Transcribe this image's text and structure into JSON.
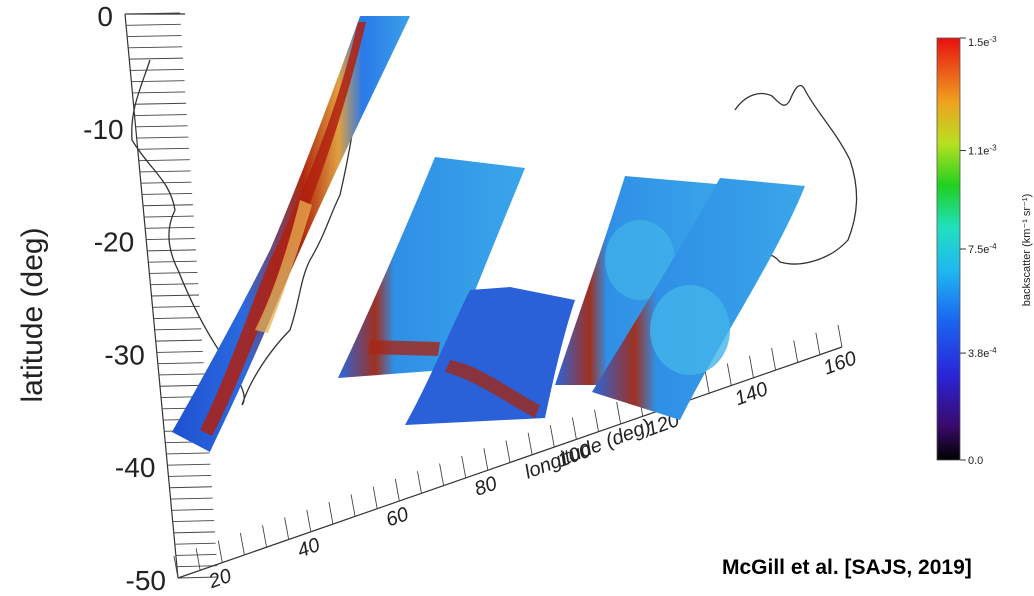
{
  "chart_data": {
    "type": "heatmap",
    "title": "",
    "ylabel": "latitude (deg)",
    "xlabel": "longitude (deg)",
    "latitude_ticks": [
      "0",
      "-10",
      "-20",
      "-30",
      "-40",
      "-50"
    ],
    "longitude_ticks": [
      "20",
      "40",
      "60",
      "80",
      "100",
      "120",
      "140",
      "160"
    ],
    "ylim": [
      -50,
      0
    ],
    "xlim": [
      10,
      160
    ],
    "colorbar": {
      "label": "backscatter (km⁻¹ sr⁻¹)",
      "ticks": [
        {
          "value": 0.0,
          "base": "0.0",
          "exp": ""
        },
        {
          "value": 0.00038,
          "base": "3.8e",
          "exp": "-4"
        },
        {
          "value": 0.00075,
          "base": "7.5e",
          "exp": "-4"
        },
        {
          "value": 0.0011,
          "base": "1.1e",
          "exp": "-3"
        },
        {
          "value": 0.0015,
          "base": "1.5e",
          "exp": "-3"
        }
      ],
      "range": [
        0.0,
        0.0015
      ]
    },
    "curtains": [
      {
        "lat_range": [
          0,
          -37
        ],
        "lon_range": [
          12,
          32
        ]
      },
      {
        "lat_range": [
          -13,
          -32
        ],
        "lon_range": [
          45,
          58
        ]
      },
      {
        "lat_range": [
          -22,
          -37
        ],
        "lon_range": [
          62,
          85
        ]
      },
      {
        "lat_range": [
          -14,
          -31
        ],
        "lon_range": [
          88,
          110
        ]
      },
      {
        "lat_range": [
          -14,
          -31
        ],
        "lon_range": [
          105,
          135
        ]
      }
    ]
  },
  "citation": "McGill et al. [SAJS, 2019]",
  "colors": {
    "low_backscatter": "#1f5fd6",
    "mid_backscatter": "#3aa0e8",
    "high_backscatter": "#b01a10",
    "coastline": "#333333"
  }
}
